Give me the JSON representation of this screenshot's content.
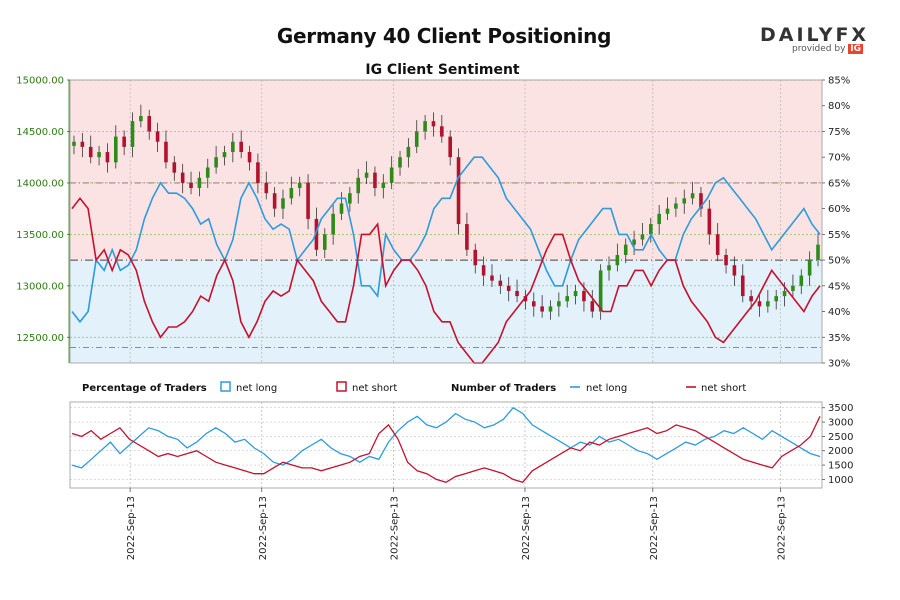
{
  "header": {
    "title": "Germany 40 Client Positioning",
    "subtitle": "IG Client Sentiment",
    "logo_text": "DAILYFX",
    "logo_sub": "provided by",
    "logo_badge": "IG"
  },
  "colors": {
    "long": "#2d9be0",
    "short": "#c8102e",
    "price_up": "#2e8b1a",
    "price_down": "#b3122e",
    "bg_top": "#fbe3e4",
    "bg_bottom": "#e3f1fa"
  },
  "legend": {
    "pct_heading": "Percentage of Traders",
    "pct_long": "net long",
    "pct_short": "net short",
    "num_heading": "Number of Traders",
    "num_long": "net long",
    "num_short": "net short"
  },
  "chart_data": {
    "type": "line",
    "title": "Germany 40 Client Positioning",
    "subtitle": "IG Client Sentiment",
    "price_axis": {
      "side": "left",
      "ticks": [
        "15000.00",
        "14500.00",
        "14000.00",
        "13500.00",
        "13000.00",
        "12500.00"
      ],
      "ylim": [
        12250,
        15000
      ]
    },
    "percent_axis": {
      "side": "right",
      "ticks": [
        "85%",
        "80%",
        "75%",
        "70%",
        "65%",
        "60%",
        "55%",
        "50%",
        "45%",
        "40%",
        "35%",
        "30%"
      ],
      "ylim": [
        30,
        85
      ]
    },
    "count_axis": {
      "side": "right",
      "ticks": [
        "3500",
        "3000",
        "2500",
        "2000",
        "1500",
        "1000"
      ],
      "ylim": [
        700,
        3700
      ]
    },
    "x_labels": [
      "2022-Sep-13",
      "2022-Sep-13",
      "2022-Sep-13",
      "2022-Sep-13",
      "2022-Sep-13",
      "2022-Sep-13"
    ],
    "reference_lines": {
      "upper_pct": 65,
      "mid_pct": 50,
      "lower_pct": 33
    },
    "pct_long": [
      40,
      38,
      40,
      50,
      48,
      52,
      48,
      49,
      52,
      58,
      62,
      65,
      63,
      63,
      62,
      60,
      57,
      58,
      53,
      50,
      54,
      62,
      65,
      62,
      58,
      56,
      57,
      56,
      50,
      52,
      54,
      58,
      60,
      62,
      62,
      55,
      45,
      45,
      43,
      55,
      52,
      50,
      50,
      52,
      55,
      60,
      62,
      62,
      66,
      68,
      70,
      70,
      68,
      66,
      62,
      60,
      58,
      56,
      52,
      48,
      45,
      45,
      50,
      54,
      56,
      58,
      60,
      60,
      55,
      55,
      52,
      52,
      55,
      52,
      50,
      50,
      55,
      58,
      60,
      62,
      65,
      66,
      64,
      62,
      60,
      58,
      55,
      52,
      54,
      56,
      58,
      60,
      57,
      55
    ],
    "pct_short": [
      60,
      62,
      60,
      50,
      52,
      48,
      52,
      51,
      48,
      42,
      38,
      35,
      37,
      37,
      38,
      40,
      43,
      42,
      47,
      50,
      46,
      38,
      35,
      38,
      42,
      44,
      43,
      44,
      50,
      48,
      46,
      42,
      40,
      38,
      38,
      45,
      55,
      55,
      57,
      45,
      48,
      50,
      50,
      48,
      45,
      40,
      38,
      38,
      34,
      32,
      30,
      30,
      32,
      34,
      38,
      40,
      42,
      44,
      48,
      52,
      55,
      55,
      50,
      46,
      44,
      42,
      40,
      40,
      45,
      45,
      48,
      48,
      45,
      48,
      50,
      50,
      45,
      42,
      40,
      38,
      35,
      34,
      36,
      38,
      40,
      42,
      45,
      48,
      46,
      44,
      42,
      40,
      43,
      45
    ],
    "num_long": [
      1500,
      1400,
      1700,
      2000,
      2300,
      1900,
      2200,
      2500,
      2800,
      2700,
      2500,
      2400,
      2100,
      2300,
      2600,
      2800,
      2600,
      2300,
      2400,
      2100,
      1900,
      1600,
      1500,
      1700,
      2000,
      2200,
      2400,
      2100,
      1900,
      1800,
      1600,
      1800,
      1700,
      2300,
      2700,
      3000,
      3200,
      2900,
      2800,
      3000,
      3300,
      3100,
      3000,
      2800,
      2900,
      3100,
      3500,
      3300,
      2900,
      2700,
      2500,
      2300,
      2100,
      2300,
      2200,
      2500,
      2300,
      2400,
      2200,
      2000,
      1900,
      1700,
      1900,
      2100,
      2300,
      2200,
      2400,
      2500,
      2700,
      2600,
      2800,
      2600,
      2400,
      2700,
      2500,
      2300,
      2100,
      1900,
      1800
    ],
    "num_short": [
      2600,
      2500,
      2700,
      2400,
      2600,
      2800,
      2400,
      2200,
      2000,
      1800,
      1900,
      1800,
      1900,
      2000,
      1800,
      1600,
      1500,
      1400,
      1300,
      1200,
      1200,
      1400,
      1600,
      1500,
      1400,
      1400,
      1300,
      1400,
      1500,
      1600,
      1800,
      1900,
      2600,
      2900,
      2400,
      1600,
      1300,
      1200,
      1000,
      900,
      1100,
      1200,
      1300,
      1400,
      1300,
      1200,
      1000,
      900,
      1300,
      1500,
      1700,
      1900,
      2100,
      2000,
      2300,
      2200,
      2400,
      2500,
      2600,
      2700,
      2800,
      2600,
      2700,
      2900,
      2800,
      2700,
      2500,
      2300,
      2100,
      1900,
      1700,
      1600,
      1500,
      1400,
      1800,
      2000,
      2200,
      2500,
      3200
    ],
    "price_close": [
      14400,
      14350,
      14250,
      14300,
      14200,
      14450,
      14350,
      14600,
      14650,
      14500,
      14400,
      14200,
      14100,
      14000,
      13950,
      14050,
      14150,
      14250,
      14300,
      14400,
      14300,
      14200,
      14000,
      13900,
      13750,
      13850,
      13950,
      14000,
      13650,
      13350,
      13500,
      13700,
      13800,
      13900,
      14050,
      14100,
      13950,
      14000,
      14150,
      14250,
      14350,
      14500,
      14600,
      14550,
      14450,
      14250,
      13600,
      13350,
      13200,
      13100,
      13050,
      13000,
      12950,
      12900,
      12850,
      12800,
      12750,
      12800,
      12850,
      12900,
      12950,
      12850,
      12750,
      13150,
      13200,
      13300,
      13400,
      13450,
      13500,
      13600,
      13700,
      13750,
      13800,
      13850,
      13900,
      13750,
      13500,
      13300,
      13200,
      13100,
      12900,
      12850,
      12800,
      12850,
      12900,
      12950,
      13000,
      13100,
      13250,
      13400
    ]
  },
  "x_labels": [
    "2022-Sep-13",
    "2022-Sep-13",
    "2022-Sep-13",
    "2022-Sep-13",
    "2022-Sep-13",
    "2022-Sep-13"
  ]
}
